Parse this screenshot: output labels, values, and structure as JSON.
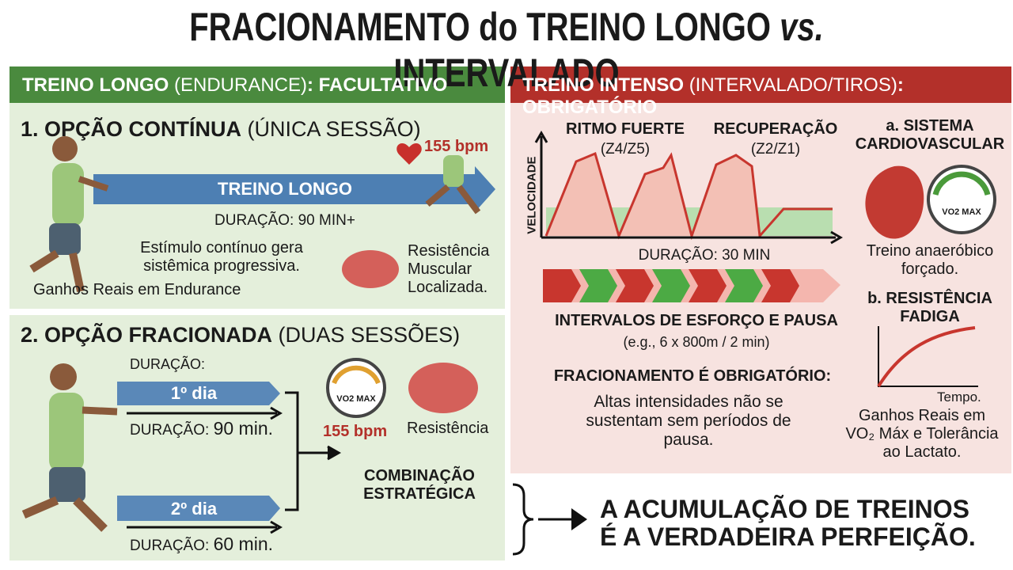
{
  "title": {
    "pre": "FRACIONAMENTO do TREINO LONGO",
    "vs": "vs.",
    "post": "INTERVALADO"
  },
  "left_header": {
    "bold": "TREINO LONGO",
    "normal": "(ENDURANCE)",
    "tail": ": FACULTATIVO"
  },
  "right_header": {
    "bold": "TREINO INTENSO",
    "normal": "(INTERVALADO/TIROS)",
    "tail": ": OBRIGATÓRIO"
  },
  "option1": {
    "heading": "1. OPÇÃO CONTÍNUA",
    "sub": "(ÚNICA SESSÃO)",
    "bpm": "155 bpm",
    "arrow": "TREINO LONGO",
    "duration": "DURAÇÃO: 90 MIN+",
    "stimulus": "Estímulo contínuo gera\nsistêmica progressiva.",
    "gains": "Ganhos Reais em Endurance",
    "muscle": "Resistência\nMuscular\nLocalizada."
  },
  "option2": {
    "heading": "2. OPÇÃO FRACIONADA",
    "sub": "(DUAS SESSÕES)",
    "duration_top": "DURAÇÃO:",
    "day1": "1º dia",
    "day1_label": "DURAÇÃO:",
    "day1_value": "90 min.",
    "gauge": "VO2 MAX",
    "bpm": "155 bpm",
    "muscle": "Resistência",
    "combo": "COMBINAÇÃO\nESTRATÉGICA",
    "day2": "2º dia",
    "day2_label": "DURAÇÃO:",
    "day2_value": "60 min."
  },
  "intense": {
    "peak_title": "RITMO FUERTE",
    "peak_zone": "(Z4/Z5)",
    "rec_title": "RECUPERAÇÃO",
    "rec_zone": "(Z2/Z1)",
    "y_axis": "VELOCIDADE",
    "duration": "DURAÇÃO: 30 MIN",
    "intervals": "INTERVALOS DE ESFORÇO E PAUSA",
    "example": "(e.g., 6 x 800m / 2 min)",
    "mandatory": "FRACIONAMENTO É OBRIGATÓRIO:",
    "mandatory_text": "Altas intensidades não se\nsustentam sem períodos de\npausa.",
    "cardio": "a. SISTEMA\nCARDIOVASCULAR",
    "gauge": "VO2 MAX",
    "anaerobic": "Treino anaeróbico\nforçado.",
    "fatigue": "b. RESISTÊNCIA\nFADIGA",
    "time": "Tempo.",
    "gains": "Ganhos Reais em\nVO₂ Máx e Tolerância\nao Lactato."
  },
  "conclusion": "A ACUMULAÇÃO DE TREINOS\nÉ A VERDADEIRA PERFEIÇÃO."
}
